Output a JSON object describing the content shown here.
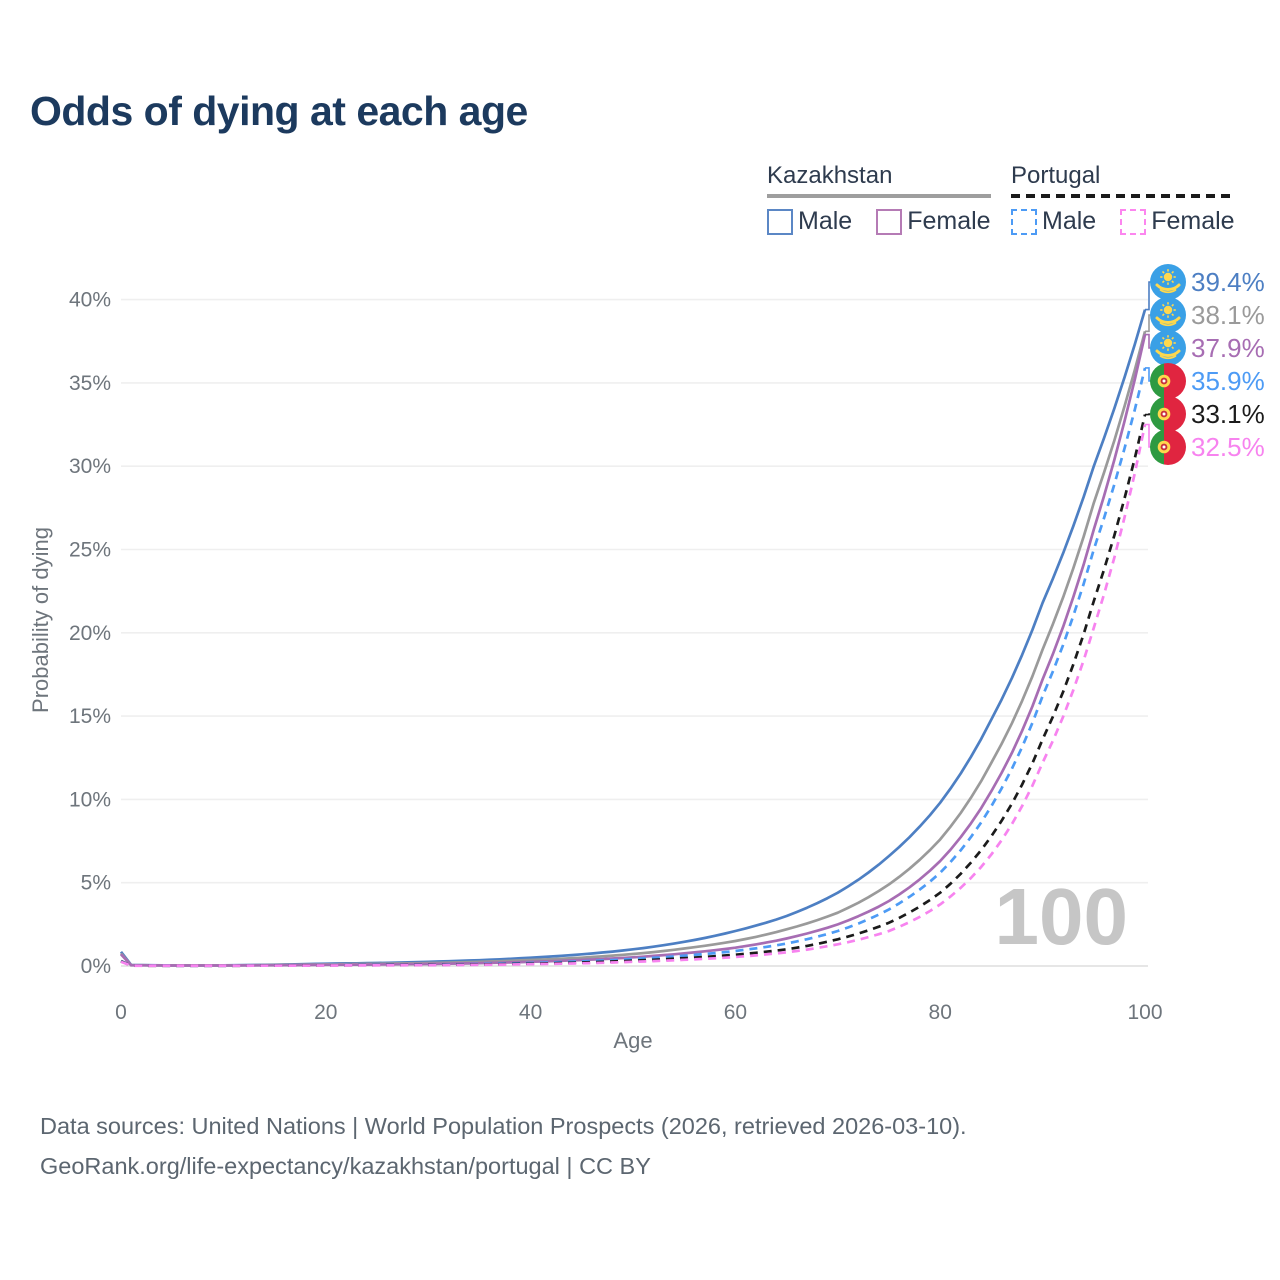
{
  "title": "Odds of dying at each age",
  "legend": {
    "groups": [
      {
        "label": "Kazakhstan",
        "line_style": "solid",
        "underline_color": "#9e9e9e",
        "items": [
          {
            "label": "Male",
            "color": "#5b87c5",
            "dashed": false
          },
          {
            "label": "Female",
            "color": "#b57bb5",
            "dashed": false
          }
        ]
      },
      {
        "label": "Portugal",
        "line_style": "dashed",
        "underline_color": "#1a1a1a",
        "items": [
          {
            "label": "Male",
            "color": "#4d9bf5",
            "dashed": true
          },
          {
            "label": "Female",
            "color": "#fc86ef",
            "dashed": true
          }
        ]
      }
    ]
  },
  "chart_data": {
    "type": "line",
    "title": "Odds of dying at each age",
    "xlabel": "Age",
    "ylabel": "Probability of dying",
    "xlim": [
      0,
      100
    ],
    "ylim": [
      0,
      40
    ],
    "x_ticks": [
      0,
      20,
      40,
      60,
      80,
      100
    ],
    "y_ticks": [
      {
        "value": 0,
        "label": "0%"
      },
      {
        "value": 5,
        "label": "5%"
      },
      {
        "value": 10,
        "label": "10%"
      },
      {
        "value": 15,
        "label": "15%"
      },
      {
        "value": 20,
        "label": "20%"
      },
      {
        "value": 25,
        "label": "25%"
      },
      {
        "value": 30,
        "label": "30%"
      },
      {
        "value": 35,
        "label": "35%"
      },
      {
        "value": 40,
        "label": "40%"
      }
    ],
    "grid": "horizontal",
    "legend_position": "top-right",
    "watermark": "100",
    "unit": "%",
    "ages": [
      0,
      1,
      5,
      10,
      15,
      20,
      25,
      30,
      35,
      40,
      45,
      50,
      55,
      60,
      65,
      70,
      75,
      80,
      85,
      90,
      95,
      100
    ],
    "series": [
      {
        "name": "Kazakhstan Male",
        "country": "Kazakhstan",
        "sex": "Male",
        "color": "#4d7fc3",
        "dashed": false,
        "flag": "kz",
        "end_label": "39.4%",
        "label_color": "#4d7fc3",
        "values": [
          0.85,
          0.06,
          0.04,
          0.04,
          0.08,
          0.14,
          0.18,
          0.25,
          0.35,
          0.5,
          0.7,
          1.0,
          1.45,
          2.1,
          3.0,
          4.4,
          6.6,
          9.8,
          14.8,
          21.8,
          30.0,
          39.4
        ]
      },
      {
        "name": "Kazakhstan (both sexes)",
        "country": "Kazakhstan",
        "sex": "Both",
        "color": "#9a9a9a",
        "dashed": false,
        "flag": "kz",
        "end_label": "38.1%",
        "label_color": "#9a9a9a",
        "values": [
          0.75,
          0.05,
          0.035,
          0.035,
          0.06,
          0.1,
          0.13,
          0.18,
          0.25,
          0.36,
          0.5,
          0.72,
          1.05,
          1.5,
          2.2,
          3.2,
          4.9,
          7.6,
          12.2,
          19.0,
          27.8,
          38.1
        ]
      },
      {
        "name": "Kazakhstan Female",
        "country": "Kazakhstan",
        "sex": "Female",
        "color": "#a76db3",
        "dashed": false,
        "flag": "kz",
        "end_label": "37.9%",
        "label_color": "#a76db3",
        "values": [
          0.7,
          0.045,
          0.03,
          0.03,
          0.045,
          0.07,
          0.09,
          0.12,
          0.17,
          0.25,
          0.36,
          0.52,
          0.76,
          1.1,
          1.65,
          2.5,
          3.9,
          6.3,
          10.5,
          17.2,
          26.2,
          37.9
        ]
      },
      {
        "name": "Portugal Male",
        "country": "Portugal",
        "sex": "Male",
        "color": "#4d9bf5",
        "dashed": true,
        "flag": "pt",
        "end_label": "35.9%",
        "label_color": "#4d9bf5",
        "values": [
          0.3,
          0.02,
          0.015,
          0.015,
          0.03,
          0.05,
          0.06,
          0.08,
          0.12,
          0.18,
          0.28,
          0.42,
          0.62,
          0.9,
          1.35,
          2.1,
          3.4,
          5.6,
          9.6,
          16.2,
          25.0,
          35.9
        ]
      },
      {
        "name": "Portugal (both sexes)",
        "country": "Portugal",
        "sex": "Both",
        "color": "#1b1b1b",
        "dashed": true,
        "flag": "pt",
        "end_label": "33.1%",
        "label_color": "#1b1b1b",
        "values": [
          0.28,
          0.018,
          0.012,
          0.012,
          0.025,
          0.04,
          0.05,
          0.065,
          0.095,
          0.14,
          0.21,
          0.32,
          0.47,
          0.68,
          1.0,
          1.6,
          2.6,
          4.4,
          7.8,
          13.6,
          21.9,
          33.1
        ]
      },
      {
        "name": "Portugal Female",
        "country": "Portugal",
        "sex": "Female",
        "color": "#f783ef",
        "dashed": true,
        "flag": "pt",
        "end_label": "32.5%",
        "label_color": "#f783ef",
        "values": [
          0.25,
          0.016,
          0.01,
          0.01,
          0.02,
          0.03,
          0.04,
          0.05,
          0.07,
          0.11,
          0.16,
          0.25,
          0.37,
          0.54,
          0.82,
          1.3,
          2.1,
          3.7,
          6.7,
          12.2,
          20.3,
          32.5
        ]
      }
    ],
    "flag_colors": {
      "kz_blue": "#3aa0e6",
      "kz_gold": "#ffd84d",
      "pt_green": "#2e9a41",
      "pt_red": "#e02540",
      "pt_gold": "#ffd84d",
      "pt_shield_red": "#c8313e"
    },
    "axis_text_color": "#6e757c",
    "grid_color": "#efefef",
    "zero_line_color": "#dedede",
    "watermark_color": "#c6c6c6"
  },
  "footer": {
    "line1": "Data sources: United Nations | World Population Prospects (2026, retrieved 2026-03-10).",
    "line2": "GeoRank.org/life-expectancy/kazakhstan/portugal | CC BY"
  }
}
